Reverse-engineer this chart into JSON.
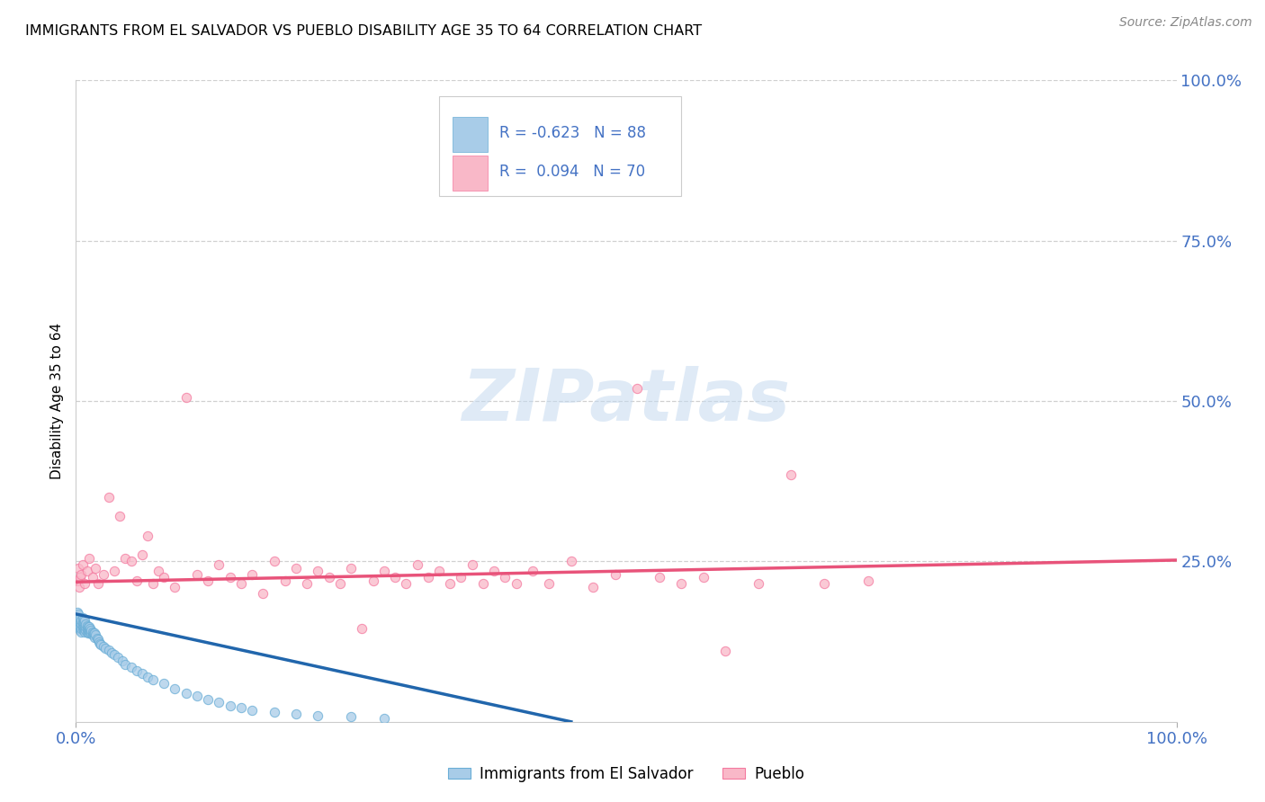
{
  "title": "IMMIGRANTS FROM EL SALVADOR VS PUEBLO DISABILITY AGE 35 TO 64 CORRELATION CHART",
  "source": "Source: ZipAtlas.com",
  "ylabel": "Disability Age 35 to 64",
  "legend_blue_r": "-0.623",
  "legend_blue_n": "88",
  "legend_pink_r": "0.094",
  "legend_pink_n": "70",
  "blue_color": "#a8cce8",
  "blue_edge_color": "#6aaed6",
  "pink_color": "#f9b8c8",
  "pink_edge_color": "#f47aa0",
  "blue_line_color": "#2166ac",
  "pink_line_color": "#e8537a",
  "blue_scatter_x": [
    0.001,
    0.001,
    0.001,
    0.001,
    0.002,
    0.002,
    0.002,
    0.002,
    0.002,
    0.003,
    0.003,
    0.003,
    0.003,
    0.004,
    0.004,
    0.004,
    0.004,
    0.005,
    0.005,
    0.005,
    0.005,
    0.006,
    0.006,
    0.006,
    0.006,
    0.007,
    0.007,
    0.007,
    0.007,
    0.008,
    0.008,
    0.008,
    0.008,
    0.009,
    0.009,
    0.009,
    0.01,
    0.01,
    0.01,
    0.011,
    0.011,
    0.011,
    0.012,
    0.012,
    0.012,
    0.013,
    0.013,
    0.014,
    0.014,
    0.015,
    0.015,
    0.016,
    0.016,
    0.017,
    0.017,
    0.018,
    0.019,
    0.02,
    0.021,
    0.022,
    0.023,
    0.025,
    0.027,
    0.03,
    0.032,
    0.035,
    0.038,
    0.042,
    0.045,
    0.05,
    0.055,
    0.06,
    0.065,
    0.07,
    0.08,
    0.09,
    0.1,
    0.11,
    0.12,
    0.13,
    0.14,
    0.15,
    0.16,
    0.18,
    0.2,
    0.22,
    0.25,
    0.28
  ],
  "blue_scatter_y": [
    0.155,
    0.16,
    0.165,
    0.17,
    0.148,
    0.152,
    0.158,
    0.162,
    0.168,
    0.145,
    0.15,
    0.155,
    0.16,
    0.142,
    0.148,
    0.155,
    0.162,
    0.14,
    0.145,
    0.152,
    0.158,
    0.145,
    0.15,
    0.155,
    0.162,
    0.142,
    0.148,
    0.155,
    0.16,
    0.14,
    0.145,
    0.15,
    0.158,
    0.142,
    0.148,
    0.152,
    0.14,
    0.145,
    0.15,
    0.138,
    0.142,
    0.148,
    0.138,
    0.142,
    0.148,
    0.14,
    0.145,
    0.138,
    0.142,
    0.135,
    0.14,
    0.135,
    0.138,
    0.132,
    0.138,
    0.135,
    0.13,
    0.128,
    0.125,
    0.122,
    0.12,
    0.118,
    0.115,
    0.112,
    0.108,
    0.105,
    0.1,
    0.095,
    0.09,
    0.085,
    0.08,
    0.075,
    0.07,
    0.065,
    0.06,
    0.052,
    0.045,
    0.04,
    0.035,
    0.03,
    0.025,
    0.022,
    0.018,
    0.015,
    0.012,
    0.01,
    0.008,
    0.005
  ],
  "pink_scatter_x": [
    0.001,
    0.002,
    0.003,
    0.004,
    0.005,
    0.006,
    0.008,
    0.01,
    0.012,
    0.015,
    0.018,
    0.02,
    0.025,
    0.03,
    0.035,
    0.04,
    0.045,
    0.05,
    0.055,
    0.06,
    0.065,
    0.07,
    0.075,
    0.08,
    0.09,
    0.1,
    0.11,
    0.12,
    0.13,
    0.14,
    0.15,
    0.16,
    0.17,
    0.18,
    0.19,
    0.2,
    0.21,
    0.22,
    0.23,
    0.24,
    0.25,
    0.26,
    0.27,
    0.28,
    0.29,
    0.3,
    0.31,
    0.32,
    0.33,
    0.34,
    0.35,
    0.36,
    0.37,
    0.38,
    0.39,
    0.4,
    0.415,
    0.43,
    0.45,
    0.47,
    0.49,
    0.51,
    0.53,
    0.55,
    0.57,
    0.59,
    0.62,
    0.65,
    0.68,
    0.72
  ],
  "pink_scatter_y": [
    0.22,
    0.24,
    0.21,
    0.225,
    0.23,
    0.245,
    0.215,
    0.235,
    0.255,
    0.225,
    0.24,
    0.215,
    0.23,
    0.35,
    0.235,
    0.32,
    0.255,
    0.25,
    0.22,
    0.26,
    0.29,
    0.215,
    0.235,
    0.225,
    0.21,
    0.505,
    0.23,
    0.22,
    0.245,
    0.225,
    0.215,
    0.23,
    0.2,
    0.25,
    0.22,
    0.24,
    0.215,
    0.235,
    0.225,
    0.215,
    0.24,
    0.145,
    0.22,
    0.235,
    0.225,
    0.215,
    0.245,
    0.225,
    0.235,
    0.215,
    0.225,
    0.245,
    0.215,
    0.235,
    0.225,
    0.215,
    0.235,
    0.215,
    0.25,
    0.21,
    0.23,
    0.52,
    0.225,
    0.215,
    0.225,
    0.11,
    0.215,
    0.385,
    0.215,
    0.22
  ],
  "blue_trend_x": [
    0.0,
    0.45
  ],
  "blue_trend_y": [
    0.168,
    0.0
  ],
  "pink_trend_x": [
    0.0,
    1.0
  ],
  "pink_trend_y": [
    0.218,
    0.252
  ],
  "xlim": [
    0.0,
    1.0
  ],
  "ylim": [
    0.0,
    1.0
  ],
  "yticks": [
    0.0,
    0.25,
    0.5,
    0.75,
    1.0
  ],
  "ytick_labels_right": [
    "",
    "25.0%",
    "50.0%",
    "75.0%",
    "100.0%"
  ],
  "xtick_labels": [
    "0.0%",
    "100.0%"
  ],
  "grid_color": "#d0d0d0",
  "watermark_text": "ZIPatlas",
  "watermark_color": "#c5daf0",
  "background_color": "#ffffff",
  "legend_label_blue": "Immigrants from El Salvador",
  "legend_label_pink": "Pueblo"
}
